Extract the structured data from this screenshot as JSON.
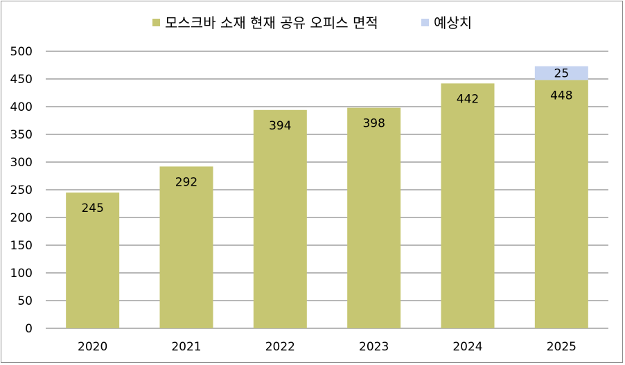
{
  "chart_data": {
    "type": "bar",
    "stacked": true,
    "categories": [
      "2020",
      "2021",
      "2022",
      "2023",
      "2024",
      "2025"
    ],
    "series": [
      {
        "name": "모스크바 소재 현재 공유 오피스 면적",
        "values": [
          245,
          292,
          394,
          398,
          442,
          448
        ],
        "color": "#c6c672"
      },
      {
        "name": "예상치",
        "values": [
          null,
          null,
          null,
          null,
          null,
          25
        ],
        "color": "#c5d3f0"
      }
    ],
    "ylim": [
      0,
      500
    ],
    "yticks": [
      0,
      50,
      100,
      150,
      200,
      250,
      300,
      350,
      400,
      450,
      500
    ],
    "grid": true,
    "legend_position": "top"
  }
}
